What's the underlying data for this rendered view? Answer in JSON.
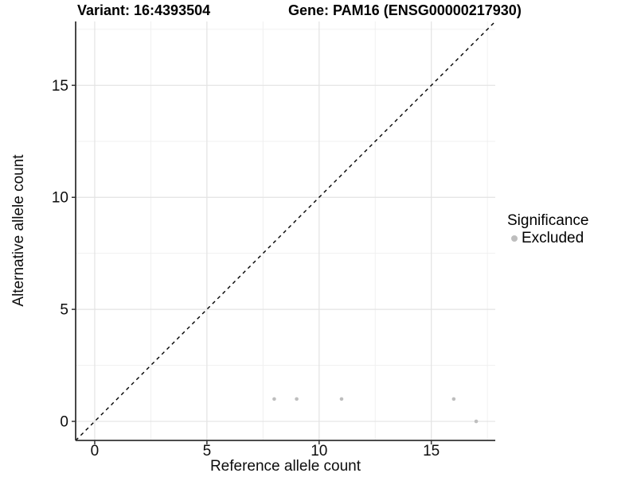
{
  "chart_data": {
    "type": "scatter",
    "titles": {
      "left": "Variant: 16:4393504",
      "right": "Gene: PAM16 (ENSG00000217930)"
    },
    "xlabel": "Reference allele count",
    "ylabel": "Alternative allele count",
    "xlim": [
      -0.85,
      17.85
    ],
    "ylim": [
      -0.85,
      17.85
    ],
    "xticks": [
      0,
      5,
      10,
      15
    ],
    "yticks": [
      0,
      5,
      10,
      15
    ],
    "minor_xticks": [
      2.5,
      7.5,
      12.5,
      17.5
    ],
    "minor_yticks": [
      2.5,
      7.5,
      12.5,
      17.5
    ],
    "grid": "major+minor",
    "identity_line": {
      "slope": 1,
      "intercept": 0,
      "style": "dashed",
      "color": "#000000"
    },
    "series": [
      {
        "name": "Excluded",
        "color": "#bebebe",
        "marker": "circle",
        "points": [
          {
            "x": 8,
            "y": 1
          },
          {
            "x": 9,
            "y": 1
          },
          {
            "x": 11,
            "y": 1
          },
          {
            "x": 16,
            "y": 1
          },
          {
            "x": 17,
            "y": 0
          }
        ]
      }
    ],
    "legend": {
      "title": "Significance",
      "position": "right",
      "items": [
        {
          "label": "Excluded",
          "color": "#bebebe"
        }
      ]
    },
    "colors": {
      "background": "#ffffff",
      "grid_major": "#e3e3e3",
      "grid_minor": "#f0f0f0",
      "axis_line": "#333333",
      "tick_label": "#0d0d0d",
      "point": "#bebebe"
    }
  }
}
